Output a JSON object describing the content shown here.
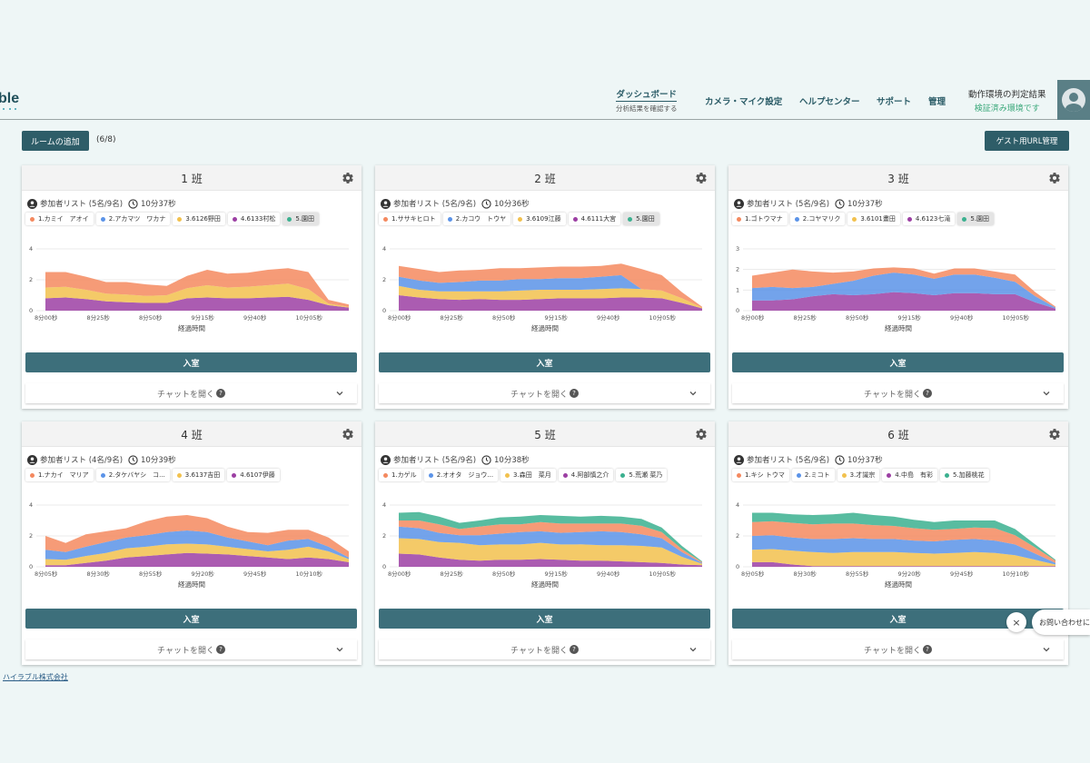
{
  "logo": "ble",
  "nav": {
    "dashboard": {
      "label": "ダッシュボード",
      "sub": "分析結果を確認する"
    },
    "camera": "カメラ・マイク設定",
    "help": "ヘルプセンター",
    "support": "サポート",
    "admin": "管理",
    "env": {
      "label": "動作環境の判定結果",
      "status": "検証済み環境です"
    }
  },
  "toolbar": {
    "add_room": "ルームの追加",
    "room_count": "(6/8)",
    "guest_url": "ゲスト用URL管理"
  },
  "colors": {
    "orange": "#f4895f",
    "blue": "#5b93e8",
    "yellow": "#f2c14e",
    "purple": "#9c3fa3",
    "green": "#3bb08f",
    "primary": "#3d6f7b"
  },
  "rooms": [
    {
      "title": "1 班",
      "participants": "参加者リスト (5名/9名)",
      "elapsed": "10分37秒",
      "members": [
        {
          "name": "1.カミイ　アオイ",
          "color": "#f4895f"
        },
        {
          "name": "2.アカマツ　ワカナ",
          "color": "#5b93e8"
        },
        {
          "name": "3.6126野田",
          "color": "#f2c14e"
        },
        {
          "name": "4.6133村松",
          "color": "#9c3fa3"
        },
        {
          "name": "5.園田",
          "color": "#3bb08f",
          "selected": true
        }
      ],
      "chart": {
        "type": "area",
        "xlabel": "経過時間",
        "yticks": [
          "4",
          "2",
          "0"
        ],
        "ymax": 4,
        "xticks": [
          "8分00秒",
          "8分25秒",
          "8分50秒",
          "9分15秒",
          "9分40秒",
          "10分05秒"
        ],
        "series": [
          [
            0.8,
            0.85,
            0.75,
            0.6,
            0.55,
            0.5,
            0.5,
            0.8,
            0.85,
            0.8,
            0.8,
            0.85,
            0.9,
            0.7,
            0.35,
            0.2
          ],
          [
            0.7,
            0.7,
            0.6,
            0.5,
            0.5,
            0.45,
            0.5,
            0.65,
            0.8,
            0.7,
            0.75,
            0.8,
            0.85,
            0.7,
            0.1,
            0.05
          ],
          [
            0.0,
            0.0,
            0.0,
            0.0,
            0.0,
            0.0,
            0.0,
            0.0,
            0.0,
            0.0,
            0.0,
            0.0,
            0.0,
            0.0,
            0.0,
            0.0
          ],
          [
            1.0,
            0.95,
            0.85,
            0.75,
            0.8,
            0.75,
            0.6,
            0.8,
            1.0,
            0.9,
            0.9,
            1.0,
            1.0,
            1.1,
            0.25,
            0.15
          ]
        ]
      }
    },
    {
      "title": "2 班",
      "participants": "参加者リスト (5名/9名)",
      "elapsed": "10分36秒",
      "members": [
        {
          "name": "1.ササキヒロト",
          "color": "#f4895f"
        },
        {
          "name": "2.カコウ　トウヤ",
          "color": "#5b93e8"
        },
        {
          "name": "3.6109江藤",
          "color": "#f2c14e"
        },
        {
          "name": "4.6111大宮",
          "color": "#9c3fa3"
        },
        {
          "name": "5.園田",
          "color": "#3bb08f",
          "selected": true
        }
      ],
      "chart": {
        "type": "area",
        "xlabel": "経過時間",
        "yticks": [
          "4",
          "2",
          "0"
        ],
        "ymax": 4,
        "xticks": [
          "8分00秒",
          "8分25秒",
          "8分50秒",
          "9分15秒",
          "9分40秒",
          "10分05秒"
        ],
        "series": [
          [
            1.0,
            0.85,
            0.75,
            0.7,
            0.75,
            0.7,
            0.7,
            0.75,
            0.8,
            0.8,
            0.8,
            0.85,
            0.85,
            0.8,
            0.5,
            0.15
          ],
          [
            0.6,
            0.5,
            0.5,
            0.55,
            0.5,
            0.55,
            0.6,
            0.6,
            0.55,
            0.55,
            0.6,
            0.6,
            0.55,
            0.5,
            0.3,
            0.05
          ],
          [
            0.6,
            0.6,
            0.55,
            0.6,
            0.7,
            0.7,
            0.75,
            0.7,
            0.75,
            0.75,
            0.8,
            0.85,
            0.0,
            0.0,
            0.0,
            0.0
          ],
          [
            0.7,
            0.75,
            0.7,
            0.75,
            0.7,
            0.8,
            0.7,
            0.75,
            0.75,
            0.75,
            0.7,
            0.75,
            1.3,
            1.0,
            0.4,
            0.05
          ]
        ]
      }
    },
    {
      "title": "3 班",
      "participants": "参加者リスト (5名/9名)",
      "elapsed": "10分37秒",
      "members": [
        {
          "name": "1.ゴトウマナ",
          "color": "#f4895f"
        },
        {
          "name": "2.コヤマリク",
          "color": "#5b93e8"
        },
        {
          "name": "3.6101畫田",
          "color": "#f2c14e"
        },
        {
          "name": "4.6123七滝",
          "color": "#9c3fa3"
        },
        {
          "name": "5.園田",
          "color": "#3bb08f",
          "selected": true
        }
      ],
      "chart": {
        "type": "area",
        "xlabel": "経過時間",
        "yticks": [
          "3",
          "2",
          "1",
          "0"
        ],
        "ymax": 3,
        "xticks": [
          "8分00秒",
          "8分25秒",
          "8分50秒",
          "9分15秒",
          "9分40秒",
          "10分05秒"
        ],
        "series": [
          [
            0.5,
            0.5,
            0.55,
            0.7,
            0.8,
            0.75,
            0.8,
            0.9,
            0.85,
            0.75,
            0.85,
            0.85,
            0.8,
            0.8,
            0.4,
            0.1
          ],
          [
            0.0,
            0.0,
            0.0,
            0.0,
            0.0,
            0.0,
            0.0,
            0.0,
            0.0,
            0.0,
            0.0,
            0.0,
            0.0,
            0.0,
            0.0,
            0.0
          ],
          [
            0.6,
            0.65,
            0.55,
            0.45,
            0.5,
            0.7,
            0.9,
            0.95,
            0.9,
            0.8,
            0.9,
            0.9,
            0.8,
            0.6,
            0.3,
            0.05
          ],
          [
            0.6,
            0.7,
            0.9,
            0.75,
            0.55,
            0.45,
            0.35,
            0.25,
            0.3,
            0.25,
            0.3,
            0.3,
            0.3,
            0.35,
            0.2,
            0.05
          ]
        ]
      }
    },
    {
      "title": "4 班",
      "participants": "参加者リスト (4名/9名)",
      "elapsed": "10分39秒",
      "members": [
        {
          "name": "1.ナカイ　マリア",
          "color": "#f4895f"
        },
        {
          "name": "2.タケバヤシ　コ...",
          "color": "#5b93e8"
        },
        {
          "name": "3.6137吉田",
          "color": "#f2c14e"
        },
        {
          "name": "4.6107伊藤",
          "color": "#9c3fa3"
        }
      ],
      "chart": {
        "type": "area",
        "xlabel": "経過時間",
        "yticks": [
          "4",
          "2",
          "0"
        ],
        "ymax": 4,
        "xticks": [
          "8分05秒",
          "8分30秒",
          "8分55秒",
          "9分20秒",
          "9分45秒",
          "10分10秒"
        ],
        "series": [
          [
            0.1,
            0.1,
            0.25,
            0.4,
            0.6,
            0.7,
            0.8,
            0.9,
            0.85,
            0.8,
            0.7,
            0.6,
            0.5,
            0.6,
            0.5,
            0.3
          ],
          [
            0.4,
            0.35,
            0.45,
            0.5,
            0.6,
            0.6,
            0.65,
            0.6,
            0.6,
            0.5,
            0.45,
            0.4,
            0.6,
            0.7,
            0.5,
            0.2
          ],
          [
            0.6,
            0.5,
            0.6,
            0.7,
            0.7,
            0.75,
            0.8,
            0.85,
            0.8,
            0.6,
            0.5,
            0.4,
            0.6,
            0.5,
            0.3,
            0.1
          ],
          [
            0.9,
            0.6,
            0.8,
            0.7,
            0.6,
            0.9,
            1.0,
            1.0,
            0.9,
            0.7,
            0.6,
            0.8,
            0.7,
            0.6,
            0.6,
            0.4
          ]
        ]
      }
    },
    {
      "title": "5 班",
      "participants": "参加者リスト (5名/9名)",
      "elapsed": "10分38秒",
      "members": [
        {
          "name": "1.カゲル",
          "color": "#f4895f"
        },
        {
          "name": "2.オオタ　ジョウ...",
          "color": "#5b93e8"
        },
        {
          "name": "3.森田　菜月",
          "color": "#f2c14e"
        },
        {
          "name": "4.阿部慎之介",
          "color": "#9c3fa3"
        },
        {
          "name": "5.荒瀬 菜乃",
          "color": "#3bb08f"
        }
      ],
      "chart": {
        "type": "area",
        "xlabel": "経過時間",
        "yticks": [
          "4",
          "2",
          "0"
        ],
        "ymax": 4,
        "xticks": [
          "8分00秒",
          "8分25秒",
          "8分50秒",
          "9分15秒",
          "9分40秒",
          "10分05秒"
        ],
        "series": [
          [
            0.85,
            0.8,
            0.6,
            0.45,
            0.4,
            0.45,
            0.45,
            0.5,
            0.45,
            0.4,
            0.4,
            0.35,
            0.3,
            0.25,
            0.15,
            0.1
          ],
          [
            1.0,
            1.0,
            1.0,
            1.1,
            1.0,
            1.0,
            1.0,
            1.05,
            1.0,
            1.05,
            1.0,
            1.05,
            1.05,
            1.0,
            0.5,
            0.1
          ],
          [
            0.75,
            0.7,
            0.6,
            0.5,
            0.65,
            0.7,
            0.8,
            0.75,
            0.75,
            0.8,
            0.9,
            0.85,
            0.75,
            0.6,
            0.3,
            0.05
          ],
          [
            0.4,
            0.5,
            0.55,
            0.4,
            0.55,
            0.6,
            0.5,
            0.6,
            0.6,
            0.55,
            0.5,
            0.55,
            0.55,
            0.4,
            0.2,
            0.05
          ],
          [
            0.5,
            0.55,
            0.5,
            0.4,
            0.4,
            0.45,
            0.5,
            0.45,
            0.5,
            0.45,
            0.5,
            0.45,
            0.45,
            0.3,
            0.2,
            0.05
          ]
        ]
      }
    },
    {
      "title": "6 班",
      "participants": "参加者リスト (5名/9名)",
      "elapsed": "10分37秒",
      "members": [
        {
          "name": "1.キシ トウマ",
          "color": "#f4895f"
        },
        {
          "name": "2.ミコト",
          "color": "#5b93e8"
        },
        {
          "name": "3.才識宗",
          "color": "#f2c14e"
        },
        {
          "name": "4.中島　有彩",
          "color": "#9c3fa3"
        },
        {
          "name": "5.加藤桃花",
          "color": "#3bb08f"
        }
      ],
      "chart": {
        "type": "area",
        "xlabel": "経過時間",
        "yticks": [
          "4",
          "2",
          "0"
        ],
        "ymax": 4,
        "xticks": [
          "8分05秒",
          "8分30秒",
          "8分55秒",
          "9分20秒",
          "9分45秒",
          "10分10秒"
        ],
        "series": [
          [
            0.3,
            0.3,
            0.15,
            0.05,
            0.05,
            0.05,
            0.05,
            0.05,
            0.05,
            0.05,
            0.05,
            0.05,
            0.05,
            0.05,
            0.05,
            0.05
          ],
          [
            0.8,
            0.85,
            0.9,
            0.9,
            0.85,
            0.9,
            0.9,
            0.9,
            0.85,
            0.8,
            0.85,
            0.9,
            0.85,
            0.7,
            0.4,
            0.1
          ],
          [
            0.9,
            0.9,
            0.85,
            0.85,
            0.9,
            0.9,
            0.85,
            0.85,
            0.8,
            0.8,
            0.85,
            0.85,
            0.8,
            0.7,
            0.4,
            0.1
          ],
          [
            0.9,
            0.9,
            0.95,
            0.95,
            1.0,
            0.95,
            0.9,
            0.85,
            0.8,
            0.75,
            0.7,
            0.75,
            0.8,
            0.6,
            0.4,
            0.15
          ],
          [
            0.6,
            0.55,
            0.55,
            0.6,
            0.6,
            0.7,
            0.65,
            0.6,
            0.55,
            0.5,
            0.55,
            0.45,
            0.5,
            0.4,
            0.2,
            0.05
          ]
        ]
      }
    }
  ],
  "room_ui": {
    "enter_label": "入室",
    "chat_label": "チャットを開く"
  },
  "footer": {
    "company": "ハイラブル株式会社"
  },
  "contact": {
    "bubble": "お問い合わせに回答",
    "close": "×"
  }
}
